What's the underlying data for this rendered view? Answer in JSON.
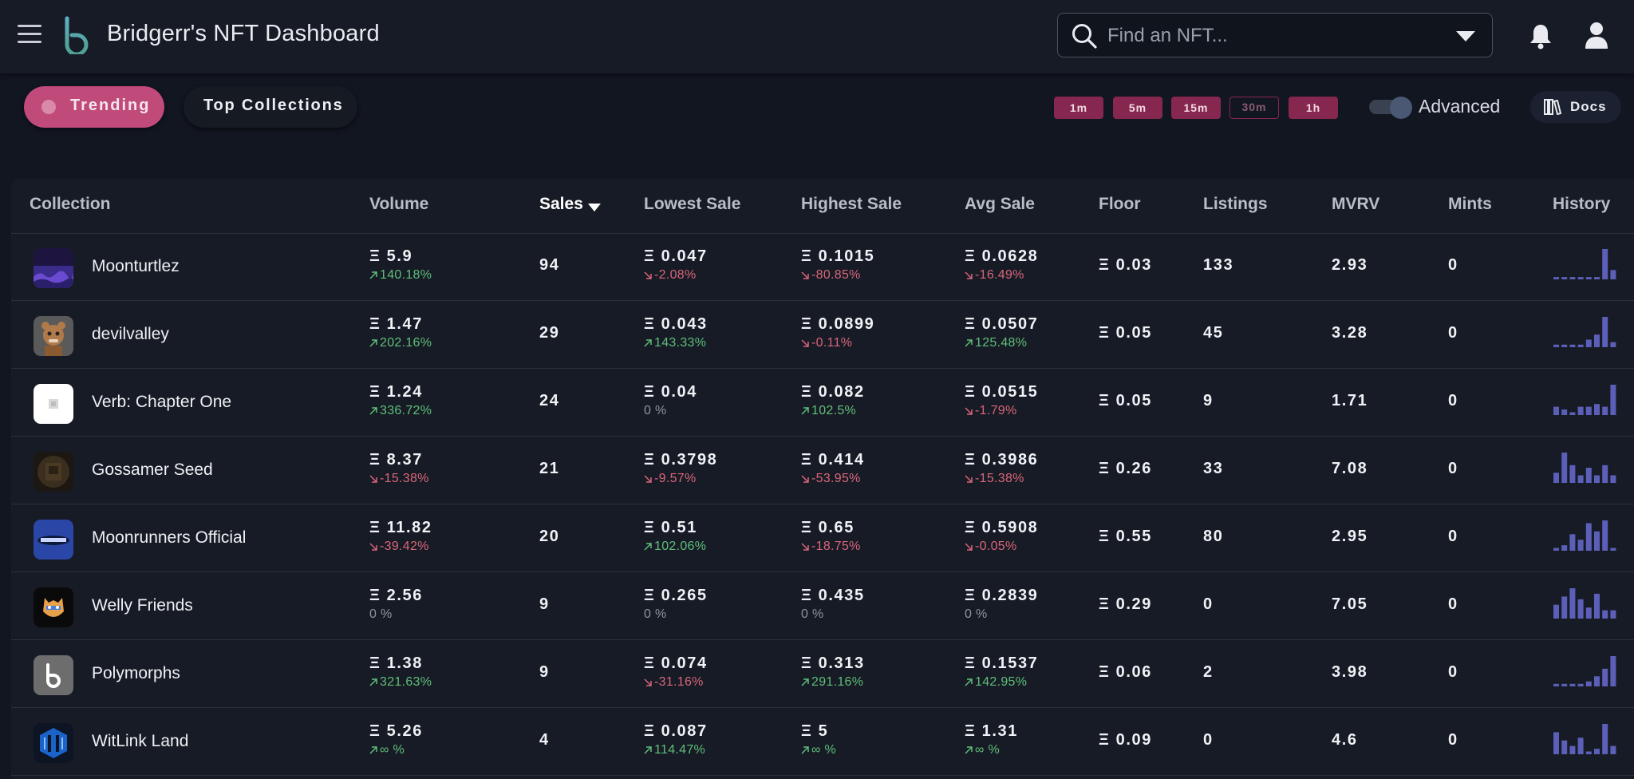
{
  "header": {
    "title": "Bridgerr's NFT Dashboard",
    "search_placeholder": "Find an NFT..."
  },
  "tabs": {
    "trending": "Trending",
    "top_collections": "Top Collections"
  },
  "timeframes": [
    {
      "label": "1m",
      "active": false
    },
    {
      "label": "5m",
      "active": false
    },
    {
      "label": "15m",
      "active": false
    },
    {
      "label": "30m",
      "active": true
    },
    {
      "label": "1h",
      "active": false
    }
  ],
  "advanced": {
    "label": "Advanced",
    "enabled": true
  },
  "docs_label": "Docs",
  "columns": {
    "collection": "Collection",
    "volume": "Volume",
    "sales": "Sales",
    "lowest": "Lowest Sale",
    "highest": "Highest Sale",
    "avg": "Avg Sale",
    "floor": "Floor",
    "listings": "Listings",
    "mvrv": "MVRV",
    "mints": "Mints",
    "history": "History"
  },
  "colors": {
    "accent": "#c04a7a",
    "timeframe_bg": "#86274f",
    "up": "#5fbf7a",
    "down": "#d9667a",
    "bars": "#5b5fb8"
  },
  "rows": [
    {
      "name": "Moonturtlez",
      "volume": "Ξ 5.9",
      "volume_chg": "140.18%",
      "volume_dir": "up",
      "sales": "94",
      "lowest": "Ξ 0.047",
      "lowest_chg": "-2.08%",
      "lowest_dir": "down",
      "highest": "Ξ 0.1015",
      "highest_chg": "-80.85%",
      "highest_dir": "down",
      "avg": "Ξ 0.0628",
      "avg_chg": "-16.49%",
      "avg_dir": "down",
      "floor": "Ξ 0.03",
      "listings": "133",
      "mvrv": "2.93",
      "mints": "0",
      "history": [
        1,
        1,
        1,
        1,
        1,
        1,
        13,
        4
      ]
    },
    {
      "name": "devilvalley",
      "volume": "Ξ 1.47",
      "volume_chg": "202.16%",
      "volume_dir": "up",
      "sales": "29",
      "lowest": "Ξ 0.043",
      "lowest_chg": "143.33%",
      "lowest_dir": "up",
      "highest": "Ξ 0.0899",
      "highest_chg": "-0.11%",
      "highest_dir": "down",
      "avg": "Ξ 0.0507",
      "avg_chg": "125.48%",
      "avg_dir": "up",
      "floor": "Ξ 0.05",
      "listings": "45",
      "mvrv": "3.28",
      "mints": "0",
      "history": [
        1,
        1,
        1,
        1,
        3,
        5,
        12,
        2
      ]
    },
    {
      "name": "Verb: Chapter One",
      "volume": "Ξ 1.24",
      "volume_chg": "336.72%",
      "volume_dir": "up",
      "sales": "24",
      "lowest": "Ξ 0.04",
      "lowest_chg": "0 %",
      "lowest_dir": "flat",
      "highest": "Ξ 0.082",
      "highest_chg": "102.5%",
      "highest_dir": "up",
      "avg": "Ξ 0.0515",
      "avg_chg": "-1.79%",
      "avg_dir": "down",
      "floor": "Ξ 0.05",
      "listings": "9",
      "mvrv": "1.71",
      "mints": "0",
      "history": [
        3,
        2,
        1,
        3,
        3,
        4,
        3,
        11
      ]
    },
    {
      "name": "Gossamer Seed",
      "volume": "Ξ 8.37",
      "volume_chg": "-15.38%",
      "volume_dir": "down",
      "sales": "21",
      "lowest": "Ξ 0.3798",
      "lowest_chg": "-9.57%",
      "lowest_dir": "down",
      "highest": "Ξ 0.414",
      "highest_chg": "-53.95%",
      "highest_dir": "down",
      "avg": "Ξ 0.3986",
      "avg_chg": "-15.38%",
      "avg_dir": "down",
      "floor": "Ξ 0.26",
      "listings": "33",
      "mvrv": "7.08",
      "mints": "0",
      "history": [
        4,
        12,
        7,
        3,
        6,
        3,
        7,
        3
      ]
    },
    {
      "name": "Moonrunners Official",
      "volume": "Ξ 11.82",
      "volume_chg": "-39.42%",
      "volume_dir": "down",
      "sales": "20",
      "lowest": "Ξ 0.51",
      "lowest_chg": "102.06%",
      "lowest_dir": "up",
      "highest": "Ξ 0.65",
      "highest_chg": "-18.75%",
      "highest_dir": "down",
      "avg": "Ξ 0.5908",
      "avg_chg": "-0.05%",
      "avg_dir": "down",
      "floor": "Ξ 0.55",
      "listings": "80",
      "mvrv": "2.95",
      "mints": "0",
      "history": [
        1,
        2,
        6,
        4,
        10,
        7,
        11,
        1
      ]
    },
    {
      "name": "Welly Friends",
      "volume": "Ξ 2.56",
      "volume_chg": "0 %",
      "volume_dir": "flat",
      "sales": "9",
      "lowest": "Ξ 0.265",
      "lowest_chg": "0 %",
      "lowest_dir": "flat",
      "highest": "Ξ 0.435",
      "highest_chg": "0 %",
      "highest_dir": "flat",
      "avg": "Ξ 0.2839",
      "avg_chg": "0 %",
      "avg_dir": "flat",
      "floor": "Ξ 0.29",
      "listings": "0",
      "mvrv": "7.05",
      "mints": "0",
      "history": [
        5,
        8,
        11,
        7,
        4,
        9,
        3,
        3
      ]
    },
    {
      "name": "Polymorphs",
      "volume": "Ξ 1.38",
      "volume_chg": "321.63%",
      "volume_dir": "up",
      "sales": "9",
      "lowest": "Ξ 0.074",
      "lowest_chg": "-31.16%",
      "lowest_dir": "down",
      "highest": "Ξ 0.313",
      "highest_chg": "291.16%",
      "highest_dir": "up",
      "avg": "Ξ 0.1537",
      "avg_chg": "142.95%",
      "avg_dir": "up",
      "floor": "Ξ 0.06",
      "listings": "2",
      "mvrv": "3.98",
      "mints": "0",
      "history": [
        1,
        1,
        1,
        1,
        2,
        4,
        7,
        12
      ]
    },
    {
      "name": "WitLink Land",
      "volume": "Ξ 5.26",
      "volume_chg": "∞ %",
      "volume_dir": "up",
      "sales": "4",
      "lowest": "Ξ 0.087",
      "lowest_chg": "114.47%",
      "lowest_dir": "up",
      "highest": "Ξ 5",
      "highest_chg": "∞ %",
      "highest_dir": "up",
      "avg": "Ξ 1.31",
      "avg_chg": "∞ %",
      "avg_dir": "up",
      "floor": "Ξ 0.09",
      "listings": "0",
      "mvrv": "4.6",
      "mints": "0",
      "history": [
        8,
        5,
        3,
        6,
        1,
        2,
        11,
        3
      ]
    }
  ]
}
